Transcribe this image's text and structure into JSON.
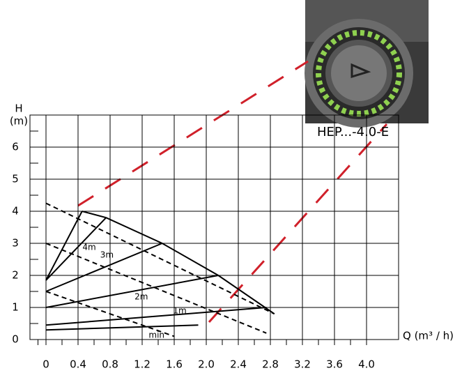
{
  "chart_data": {
    "type": "line",
    "title": "HEP...-4.0-E",
    "x_label": "Q (m³ / h)",
    "y_label": [
      "H",
      "(m)"
    ],
    "xlim": [
      -0.2,
      4.4
    ],
    "ylim": [
      0,
      7
    ],
    "xticks": [
      0,
      0.4,
      0.8,
      1.2,
      1.6,
      {
        "value": 2,
        "label": "2.0"
      },
      2.4,
      2.8,
      3.2,
      3.6,
      {
        "value": 4,
        "label": "4.0"
      }
    ],
    "yticks": [
      0,
      1,
      2,
      3,
      4,
      5,
      6
    ],
    "grid": true,
    "series": [
      {
        "color": "#000000",
        "dashed": false,
        "x": [
          0.45,
          0.75,
          1.45,
          2.15,
          2.85
        ],
        "values": [
          4.0,
          3.8,
          3.0,
          2.0,
          0.8
        ]
      },
      {
        "color": "#000000",
        "dashed": false,
        "x": [
          0,
          0.45
        ],
        "values": [
          1.85,
          4.0
        ]
      },
      {
        "color": "#000000",
        "dashed": false,
        "x": [
          0,
          0.75
        ],
        "values": [
          1.85,
          3.8
        ]
      },
      {
        "color": "#000000",
        "dashed": false,
        "x": [
          0,
          1.45
        ],
        "values": [
          1.5,
          3.0
        ]
      },
      {
        "color": "#000000",
        "dashed": false,
        "x": [
          0,
          2.15
        ],
        "values": [
          1.0,
          2.0
        ]
      },
      {
        "color": "#000000",
        "dashed": false,
        "x": [
          0,
          2.75
        ],
        "values": [
          0.45,
          1.0
        ]
      },
      {
        "color": "#000000",
        "dashed": false,
        "x": [
          0,
          1.9
        ],
        "values": [
          0.3,
          0.45
        ]
      },
      {
        "color": "#000000",
        "dashed": true,
        "x": [
          0,
          2.85
        ],
        "values": [
          4.25,
          0.8
        ]
      },
      {
        "color": "#000000",
        "dashed": true,
        "x": [
          0,
          2.75
        ],
        "values": [
          3.0,
          0.2
        ]
      },
      {
        "color": "#000000",
        "dashed": true,
        "x": [
          0,
          1.6
        ],
        "values": [
          1.5,
          0.1
        ]
      }
    ],
    "annotations": [
      {
        "text": "4m",
        "x": 0.54,
        "y": 2.87
      },
      {
        "text": "3m",
        "x": 0.76,
        "y": 2.63
      },
      {
        "text": "2m",
        "x": 1.19,
        "y": 1.33
      },
      {
        "text": "1m",
        "x": 1.67,
        "y": 0.89
      },
      {
        "text": "min",
        "x": 1.38,
        "y": 0.13
      }
    ]
  }
}
